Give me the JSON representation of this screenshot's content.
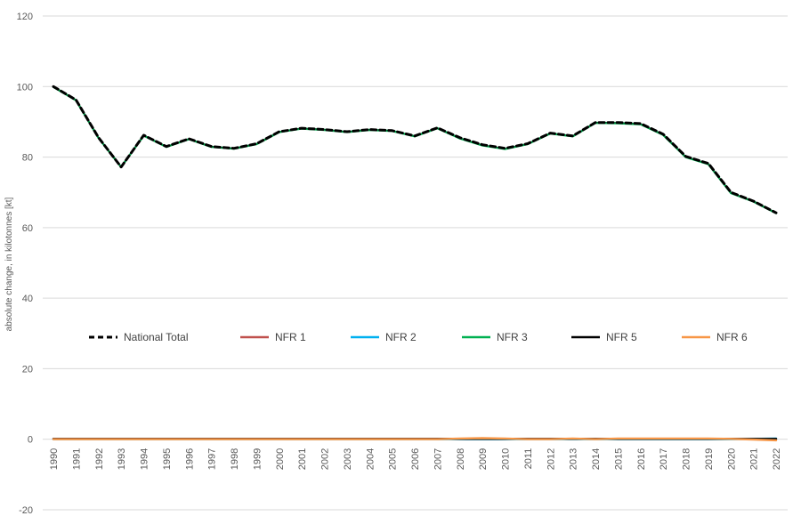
{
  "chart_data": {
    "type": "line",
    "title": "",
    "ylabel": "absolute change, in kilotonnes [kt]",
    "xlabel": "",
    "ylim": [
      -20,
      120
    ],
    "yticks": [
      -20,
      0,
      20,
      40,
      60,
      80,
      100,
      120
    ],
    "grid": true,
    "legend_position": "center",
    "categories": [
      "1990",
      "1991",
      "1992",
      "1993",
      "1994",
      "1995",
      "1996",
      "1997",
      "1998",
      "1999",
      "2000",
      "2001",
      "2002",
      "2003",
      "2004",
      "2005",
      "2006",
      "2007",
      "2008",
      "2009",
      "2010",
      "2011",
      "2012",
      "2013",
      "2014",
      "2015",
      "2016",
      "2017",
      "2018",
      "2019",
      "2020",
      "2021",
      "2022"
    ],
    "series": [
      {
        "name": "National Total",
        "color": "#000000",
        "style": "dashed",
        "values": [
          100.0,
          96.2,
          85.5,
          77.2,
          86.2,
          83.0,
          85.2,
          83.0,
          82.5,
          83.8,
          87.2,
          88.2,
          87.8,
          87.2,
          87.8,
          87.5,
          86.0,
          88.3,
          85.5,
          83.5,
          82.5,
          83.8,
          86.8,
          86.0,
          89.8,
          89.8,
          89.5,
          86.5,
          80.2,
          78.2,
          70.0,
          67.5,
          64.2
        ]
      },
      {
        "name": "NFR 1",
        "color": "#c0504d",
        "style": "solid",
        "values": [
          0.1,
          0.1,
          0.1,
          0.1,
          0.1,
          0.1,
          0.1,
          0.1,
          0.1,
          0.1,
          0.1,
          0.1,
          0.1,
          0.1,
          0.1,
          0.1,
          0.1,
          0.1,
          0.1,
          0.1,
          0.1,
          0.1,
          0.1,
          0.1,
          0.1,
          0.1,
          0.1,
          0.1,
          0.1,
          0.1,
          0.1,
          0.1,
          0.1
        ]
      },
      {
        "name": "NFR 2",
        "color": "#00b0f0",
        "style": "solid",
        "values": [
          0.0,
          0.0,
          0.0,
          0.0,
          0.0,
          0.0,
          0.0,
          0.0,
          0.0,
          0.0,
          0.0,
          0.0,
          0.0,
          0.0,
          0.0,
          0.0,
          0.0,
          0.0,
          0.0,
          0.0,
          0.0,
          0.0,
          0.0,
          0.0,
          0.0,
          0.0,
          0.0,
          0.0,
          0.0,
          0.0,
          0.0,
          0.1,
          0.2
        ]
      },
      {
        "name": "NFR 3",
        "color": "#00b050",
        "style": "solid",
        "values": [
          99.9,
          96.1,
          85.4,
          77.2,
          86.1,
          82.9,
          85.1,
          82.9,
          82.4,
          83.7,
          87.1,
          88.1,
          87.7,
          87.1,
          87.7,
          87.4,
          85.9,
          88.2,
          85.3,
          83.3,
          82.3,
          83.7,
          86.7,
          85.9,
          89.7,
          89.6,
          89.3,
          86.3,
          80.0,
          78.0,
          69.8,
          67.4,
          64.1
        ]
      },
      {
        "name": "NFR 5",
        "color": "#000000",
        "style": "solid",
        "values": [
          0.1,
          0.1,
          0.1,
          0.1,
          0.1,
          0.1,
          0.1,
          0.1,
          0.1,
          0.1,
          0.1,
          0.1,
          0.1,
          0.1,
          0.1,
          0.1,
          0.1,
          0.1,
          0.1,
          0.1,
          0.1,
          0.1,
          0.1,
          0.1,
          0.1,
          0.1,
          0.1,
          0.1,
          0.1,
          0.1,
          0.1,
          0.1,
          0.1
        ]
      },
      {
        "name": "NFR 6",
        "color": "#f79646",
        "style": "solid",
        "values": [
          0.0,
          0.0,
          0.0,
          0.0,
          0.0,
          0.0,
          0.0,
          0.0,
          0.0,
          0.0,
          0.0,
          0.0,
          0.0,
          0.0,
          0.0,
          0.0,
          0.0,
          0.0,
          0.2,
          0.3,
          0.2,
          0.0,
          0.0,
          0.2,
          0.0,
          0.2,
          0.2,
          0.2,
          0.2,
          0.2,
          0.1,
          -0.1,
          -0.3
        ]
      }
    ]
  }
}
